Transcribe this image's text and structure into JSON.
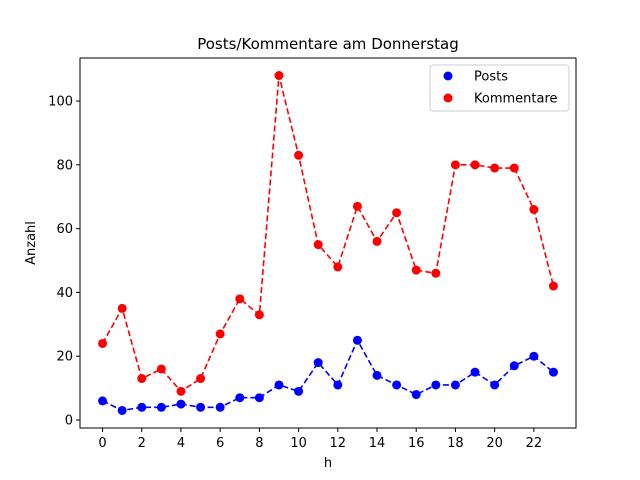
{
  "chart_data": {
    "type": "line",
    "title": "Posts/Kommentare am Donnerstag",
    "xlabel": "h",
    "ylabel": "Anzahl",
    "x": [
      0,
      1,
      2,
      3,
      4,
      5,
      6,
      7,
      8,
      9,
      10,
      11,
      12,
      13,
      14,
      15,
      16,
      17,
      18,
      19,
      20,
      21,
      22,
      23
    ],
    "xlim": [
      -1.15,
      24.15
    ],
    "ylim": [
      -2.5,
      113.5
    ],
    "xticks": [
      0,
      2,
      4,
      6,
      8,
      10,
      12,
      14,
      16,
      18,
      20,
      22
    ],
    "yticks": [
      0,
      20,
      40,
      60,
      80,
      100
    ],
    "grid": false,
    "legend_position": "top-right",
    "series": [
      {
        "name": "Posts",
        "color": "#0000ff",
        "line_style": "dashed",
        "marker": "circle",
        "values": [
          6,
          3,
          4,
          4,
          5,
          4,
          4,
          7,
          7,
          11,
          9,
          18,
          11,
          25,
          14,
          11,
          8,
          11,
          11,
          15,
          11,
          17,
          20,
          15
        ]
      },
      {
        "name": "Kommentare",
        "color": "#ff0000",
        "line_style": "dashed",
        "marker": "circle",
        "values": [
          24,
          35,
          13,
          16,
          9,
          13,
          27,
          38,
          33,
          108,
          83,
          55,
          48,
          67,
          56,
          65,
          47,
          46,
          80,
          80,
          79,
          79,
          66,
          42
        ]
      }
    ]
  }
}
